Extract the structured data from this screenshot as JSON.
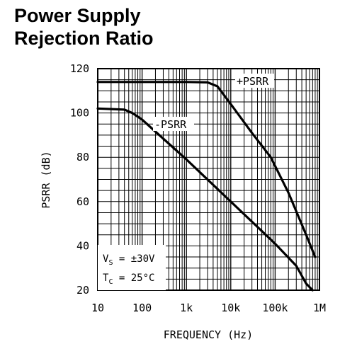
{
  "title": {
    "line1": "Power Supply",
    "line2": "Rejection Ratio"
  },
  "chart_data": {
    "type": "line",
    "xlabel": "FREQUENCY (Hz)",
    "ylabel": "PSRR (dB)",
    "xscale": "log",
    "xlim": [
      10,
      1000000
    ],
    "ylim": [
      20,
      120
    ],
    "grid": true,
    "x_ticks": [
      {
        "v": 10,
        "label": "10"
      },
      {
        "v": 100,
        "label": "100"
      },
      {
        "v": 1000,
        "label": "1k"
      },
      {
        "v": 10000,
        "label": "10k"
      },
      {
        "v": 100000,
        "label": "100k"
      },
      {
        "v": 1000000,
        "label": "1M"
      }
    ],
    "y_ticks": [
      {
        "v": 20,
        "label": "20"
      },
      {
        "v": 40,
        "label": "40"
      },
      {
        "v": 60,
        "label": "60"
      },
      {
        "v": 80,
        "label": "80"
      },
      {
        "v": 100,
        "label": "100"
      },
      {
        "v": 120,
        "label": "120"
      }
    ],
    "series": [
      {
        "name": "+PSRR",
        "color": "#000000",
        "points": [
          [
            10,
            114
          ],
          [
            1000,
            114
          ],
          [
            3000,
            113.8
          ],
          [
            5000,
            112
          ],
          [
            10000,
            104
          ],
          [
            30000,
            91
          ],
          [
            80000,
            80
          ],
          [
            200000,
            64
          ],
          [
            500000,
            45
          ],
          [
            800000,
            35
          ]
        ]
      },
      {
        "name": "-PSRR",
        "color": "#000000",
        "points": [
          [
            10,
            102
          ],
          [
            40,
            101.5
          ],
          [
            60,
            100
          ],
          [
            100,
            97
          ],
          [
            1000,
            79
          ],
          [
            10000,
            60
          ],
          [
            100000,
            41
          ],
          [
            300000,
            31
          ],
          [
            500000,
            23
          ],
          [
            700000,
            20
          ]
        ]
      }
    ],
    "annotations": {
      "vs_main": "V",
      "vs_sub": "S",
      "vs_val": " = ±30V",
      "tc_main": "T",
      "tc_sub": "C",
      "tc_val": " = 25°C"
    }
  }
}
